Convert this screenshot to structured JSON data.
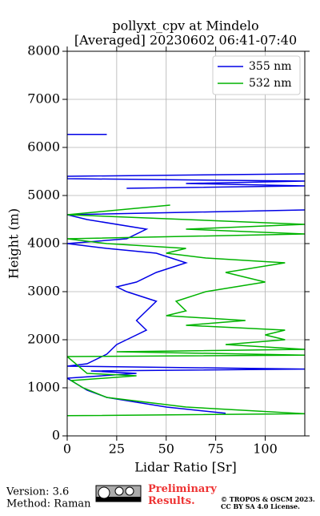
{
  "chart_data": {
    "type": "line",
    "title": "pollyxt_cpv at Mindelo",
    "subtitle": "[Averaged] 20230602 06:41-07:40",
    "x_label": "Lidar Ratio [Sr]",
    "y_label": "Height (m)",
    "xlim": [
      0,
      120
    ],
    "xticks": [
      0,
      25,
      50,
      75,
      100
    ],
    "ylim": [
      0,
      8000
    ],
    "yticks": [
      0,
      1000,
      2000,
      3000,
      4000,
      5000,
      6000,
      7000,
      8000
    ],
    "grid": true,
    "legend": "upper right",
    "series": [
      {
        "name": "355 nm",
        "color": "#0000e6",
        "heights": [
          470,
          600,
          800,
          950,
          1100,
          1200,
          1300,
          1350,
          1390,
          1450,
          1500,
          1700,
          1900,
          2000,
          2200,
          2400,
          2600,
          2800,
          3000,
          3100,
          3200,
          3400,
          3600,
          3800,
          3900,
          4000,
          4100,
          4300,
          4500,
          4600,
          4700,
          4750,
          5150,
          5200,
          5250,
          5300,
          5350,
          5400,
          5450,
          5500,
          6270,
          6270
        ],
        "values": [
          80,
          50,
          20,
          10,
          4,
          0,
          35,
          12,
          120,
          0,
          10,
          20,
          25,
          30,
          40,
          35,
          40,
          45,
          30,
          25,
          35,
          45,
          60,
          45,
          20,
          0,
          30,
          40,
          10,
          0,
          120,
          null,
          30,
          120,
          60,
          120,
          0,
          0,
          120,
          null,
          0,
          20
        ]
      },
      {
        "name": "532 nm",
        "color": "#00b300",
        "heights": [
          420,
          460,
          600,
          800,
          1000,
          1150,
          1250,
          1300,
          1650,
          1680,
          1750,
          1800,
          1900,
          2000,
          2100,
          2200,
          2300,
          2400,
          2500,
          2600,
          2800,
          3000,
          3200,
          3400,
          3600,
          3700,
          3800,
          3900,
          4000,
          4100,
          4200,
          4300,
          4400,
          4600,
          4800
        ],
        "values": [
          0,
          120,
          60,
          20,
          8,
          2,
          35,
          10,
          0,
          120,
          25,
          120,
          80,
          110,
          100,
          110,
          60,
          90,
          50,
          60,
          55,
          70,
          100,
          80,
          110,
          70,
          50,
          60,
          20,
          0,
          120,
          60,
          120,
          0,
          52
        ]
      }
    ]
  },
  "footer": {
    "version": "Version: 3.6",
    "method": "Method: Raman",
    "notice": "Preliminary Results.",
    "copyright": "© TROPOS & OSCM 2023.",
    "license": "CC BY SA 4.0 License."
  }
}
